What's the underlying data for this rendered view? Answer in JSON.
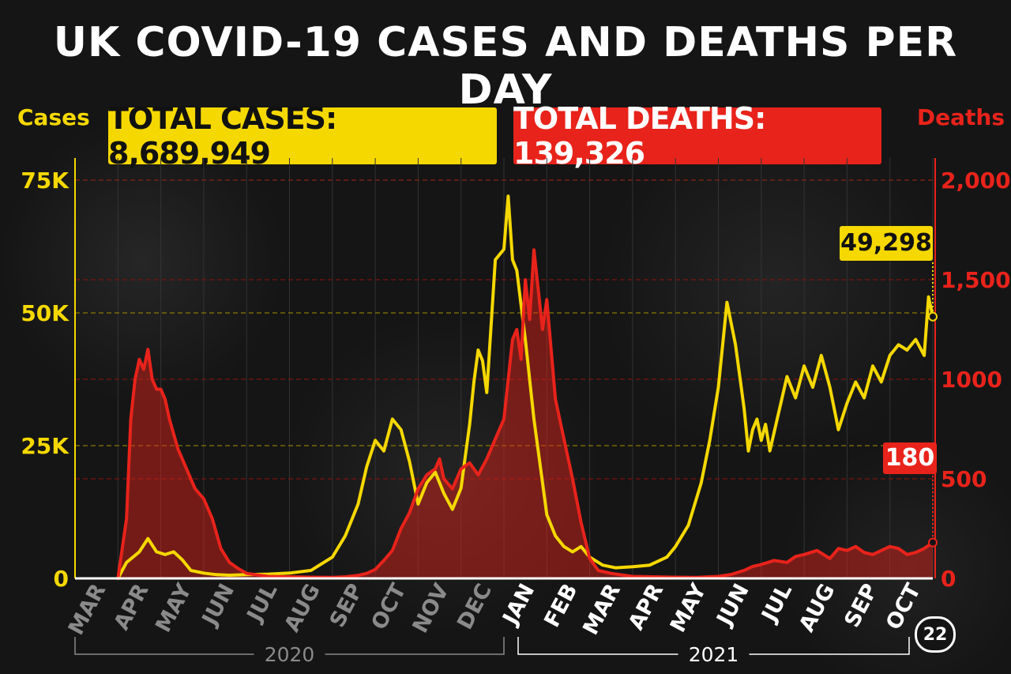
{
  "title": "UK COVID-19 CASES AND DEATHS PER DAY",
  "left_axis_title": "Cases",
  "right_axis_title": "Deaths",
  "total_cases_label": "TOTAL CASES:  8,689,949",
  "total_deaths_label": "TOTAL DEATHS: 139,326",
  "latest_cases_label": "49,298",
  "latest_deaths_label": "180",
  "badge": "22",
  "colors": {
    "cases": "#f5d800",
    "deaths": "#e8231b",
    "background": "#151515"
  },
  "chart_data": {
    "type": "line",
    "title": "UK COVID-19 CASES AND DEATHS PER DAY",
    "x_range": [
      0,
      20
    ],
    "month_labels": [
      "MAR",
      "APR",
      "MAY",
      "JUN",
      "JUL",
      "AUG",
      "SEP",
      "OCT",
      "NOV",
      "DEC",
      "JAN",
      "FEB",
      "MAR",
      "APR",
      "MAY",
      "JUN",
      "JUL",
      "AUG",
      "SEP",
      "OCT"
    ],
    "year_labels": [
      {
        "label": "2020",
        "start": 0,
        "end": 10
      },
      {
        "label": "2021",
        "start": 10,
        "end": 20
      }
    ],
    "left_axis": {
      "label": "Cases",
      "ylim": [
        0,
        75000
      ],
      "ticks": [
        0,
        25000,
        50000,
        75000
      ],
      "tick_labels": [
        "0",
        "25K",
        "50K",
        "75K"
      ],
      "grid": true
    },
    "right_axis": {
      "label": "Deaths",
      "ylim": [
        0,
        2000
      ],
      "ticks": [
        0,
        500,
        1000,
        1500,
        2000
      ],
      "tick_labels": [
        "0",
        "500",
        "1000",
        "1,500",
        "2,000"
      ],
      "grid": true
    },
    "series": [
      {
        "name": "Cases",
        "axis": "left",
        "color": "#f5d800",
        "x": [
          1.0,
          1.2,
          1.5,
          1.7,
          1.9,
          2.1,
          2.3,
          2.5,
          2.7,
          3.0,
          3.3,
          3.6,
          4.0,
          4.5,
          5.0,
          5.5,
          6.0,
          6.3,
          6.6,
          6.8,
          7.0,
          7.2,
          7.4,
          7.6,
          7.8,
          8.0,
          8.2,
          8.4,
          8.6,
          8.8,
          8.9,
          9.0,
          9.1,
          9.2,
          9.3,
          9.4,
          9.5,
          9.6,
          9.8,
          10.0,
          10.1,
          10.2,
          10.3,
          10.5,
          10.7,
          10.9,
          11.0,
          11.2,
          11.4,
          11.6,
          11.8,
          12.0,
          12.3,
          12.6,
          13.0,
          13.4,
          13.8,
          14.0,
          14.3,
          14.6,
          14.8,
          15.0,
          15.2,
          15.4,
          15.6,
          15.7,
          15.8,
          15.9,
          16.0,
          16.1,
          16.2,
          16.4,
          16.6,
          16.8,
          17.0,
          17.2,
          17.4,
          17.6,
          17.8,
          18.0,
          18.2,
          18.4,
          18.6,
          18.8,
          19.0,
          19.2,
          19.4,
          19.6,
          19.8,
          19.9,
          20.0
        ],
        "values": [
          0,
          3000,
          5000,
          7500,
          5000,
          4500,
          5000,
          3500,
          1500,
          1000,
          700,
          600,
          700,
          800,
          1000,
          1500,
          4000,
          8000,
          14000,
          21000,
          26000,
          24000,
          30000,
          28000,
          22000,
          14000,
          18000,
          20000,
          16000,
          13000,
          15000,
          17000,
          23000,
          29000,
          37000,
          43000,
          41000,
          35000,
          60000,
          62000,
          72000,
          60000,
          58000,
          45000,
          30000,
          18000,
          12000,
          8000,
          6000,
          5000,
          6000,
          4000,
          2500,
          2000,
          2200,
          2500,
          4000,
          6000,
          10000,
          18000,
          26000,
          36000,
          52000,
          44000,
          32000,
          24000,
          28000,
          30000,
          26000,
          29000,
          24000,
          31000,
          38000,
          34000,
          40000,
          36000,
          42000,
          36000,
          28000,
          33000,
          37000,
          34000,
          40000,
          37000,
          42000,
          44000,
          43000,
          45000,
          42000,
          53000,
          49298
        ]
      },
      {
        "name": "Deaths",
        "axis": "right",
        "color": "#e8231b",
        "x": [
          1.0,
          1.2,
          1.3,
          1.4,
          1.5,
          1.6,
          1.7,
          1.8,
          1.9,
          2.0,
          2.1,
          2.2,
          2.4,
          2.6,
          2.8,
          3.0,
          3.2,
          3.4,
          3.6,
          3.8,
          4.0,
          4.5,
          5.0,
          5.5,
          6.0,
          6.3,
          6.6,
          6.8,
          7.0,
          7.2,
          7.4,
          7.6,
          7.8,
          8.0,
          8.2,
          8.4,
          8.5,
          8.6,
          8.8,
          9.0,
          9.2,
          9.4,
          9.6,
          9.8,
          10.0,
          10.2,
          10.3,
          10.4,
          10.5,
          10.6,
          10.7,
          10.9,
          11.0,
          11.2,
          11.4,
          11.6,
          11.8,
          12.0,
          12.2,
          12.5,
          13.0,
          13.5,
          14.0,
          14.5,
          15.0,
          15.3,
          15.6,
          15.8,
          16.0,
          16.3,
          16.6,
          16.8,
          17.0,
          17.3,
          17.6,
          17.8,
          18.0,
          18.2,
          18.4,
          18.6,
          18.8,
          19.0,
          19.2,
          19.4,
          19.6,
          19.8,
          20.0
        ],
        "values": [
          0,
          300,
          800,
          1000,
          1100,
          1050,
          1150,
          1000,
          950,
          950,
          900,
          800,
          650,
          550,
          450,
          400,
          300,
          150,
          80,
          50,
          25,
          10,
          8,
          6,
          5,
          8,
          15,
          25,
          45,
          90,
          140,
          250,
          330,
          450,
          520,
          550,
          600,
          500,
          450,
          550,
          580,
          520,
          600,
          700,
          800,
          1200,
          1250,
          1100,
          1500,
          1300,
          1650,
          1250,
          1400,
          900,
          700,
          500,
          280,
          100,
          40,
          25,
          10,
          8,
          6,
          5,
          10,
          20,
          40,
          60,
          70,
          90,
          80,
          110,
          120,
          140,
          100,
          150,
          140,
          160,
          130,
          120,
          140,
          160,
          150,
          120,
          130,
          150,
          180
        ]
      }
    ],
    "annotations": [
      {
        "series": "Cases",
        "label": "49,298"
      },
      {
        "series": "Deaths",
        "label": "180"
      }
    ]
  }
}
